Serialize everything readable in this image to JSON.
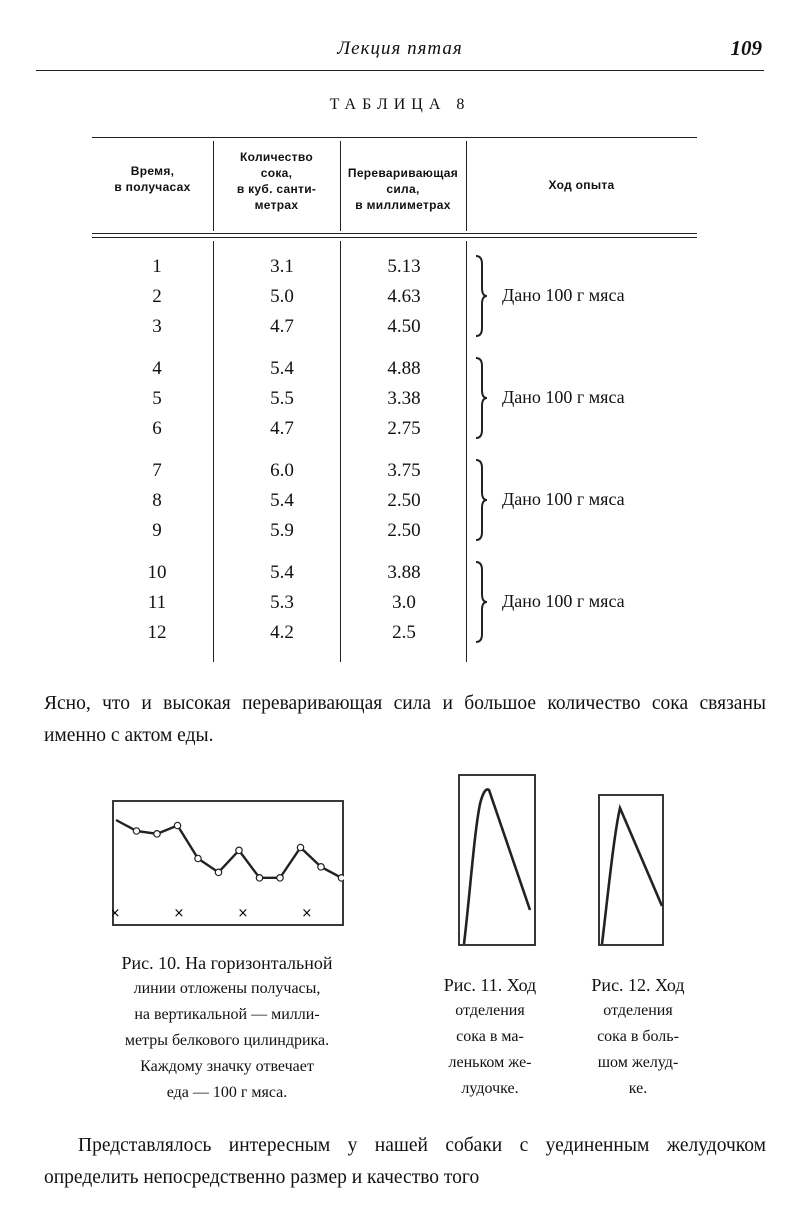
{
  "running_head": {
    "title": "Лекция пятая",
    "page_number": "109"
  },
  "table": {
    "caption": "ТАБЛИЦА 8",
    "headers": [
      "Время,\nв получасах",
      "Количество\nсока,\nв куб. санти-\nметрах",
      "Переваривающая сила,\nв миллиметрах",
      "Ход опыта"
    ],
    "rows": [
      {
        "time": "1",
        "juice": "3.1",
        "power": "5.13"
      },
      {
        "time": "2",
        "juice": "5.0",
        "power": "4.63"
      },
      {
        "time": "3",
        "juice": "4.7",
        "power": "4.50"
      },
      {
        "time": "4",
        "juice": "5.4",
        "power": "4.88"
      },
      {
        "time": "5",
        "juice": "5.5",
        "power": "3.38"
      },
      {
        "time": "6",
        "juice": "4.7",
        "power": "2.75"
      },
      {
        "time": "7",
        "juice": "6.0",
        "power": "3.75"
      },
      {
        "time": "8",
        "juice": "5.4",
        "power": "2.50"
      },
      {
        "time": "9",
        "juice": "5.9",
        "power": "2.50"
      },
      {
        "time": "10",
        "juice": "5.4",
        "power": "3.88"
      },
      {
        "time": "11",
        "juice": "5.3",
        "power": "3.0"
      },
      {
        "time": "12",
        "juice": "4.2",
        "power": "2.5"
      }
    ],
    "groups": [
      "Дано 100 г мяса",
      "Дано 100 г мяса",
      "Дано 100 г мяса",
      "Дано 100 г мяса"
    ]
  },
  "paragraph_1": "Ясно, что и высокая переваривающая сила и большое количество сока связаны именно с актом еды.",
  "figures": {
    "fig10": {
      "caption_lines": [
        "Рис. 10. На горизонтальной",
        "линии отложены получасы,",
        "на вертикальной — милли-",
        "метры белкового цилиндрика.",
        "Каждому значку отвечает",
        "еда — 100 г мяса."
      ],
      "points": [
        5.13,
        4.63,
        4.5,
        4.88,
        3.38,
        2.75,
        3.75,
        2.5,
        2.5,
        3.88,
        3.0,
        2.5
      ],
      "meal_marks_at": [
        1,
        4,
        7,
        10
      ]
    },
    "fig11": {
      "caption_lines": [
        "Рис. 11. Ход",
        "отделения",
        "сока в ма-",
        "леньком же-",
        "лудочке."
      ]
    },
    "fig12": {
      "caption_lines": [
        "Рис. 12. Ход",
        "отделения",
        "сока в боль-",
        "шом желуд-",
        "ке."
      ]
    }
  },
  "paragraph_2": "Представлялось интересным у нашей собаки с уединенным желудочком определить непосредственно размер и качество того"
}
